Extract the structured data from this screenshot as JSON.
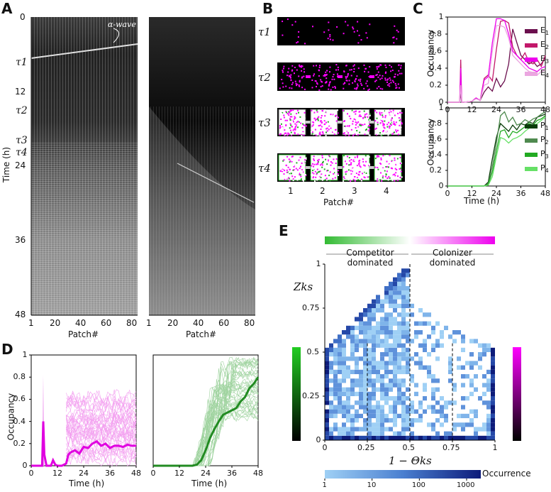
{
  "panels": {
    "A": "A",
    "B": "B",
    "C": "C",
    "D": "D",
    "E": "E"
  },
  "chart_data": [
    {
      "id": "A",
      "type": "heatmap",
      "title": "",
      "xlabel": "Patch#",
      "ylabel": "Time (h)",
      "xticks": [
        "1",
        "20",
        "40",
        "60",
        "80"
      ],
      "yticks": [
        "0",
        "12",
        "24",
        "36",
        "48"
      ],
      "xlim": [
        1,
        84
      ],
      "ylim": [
        0,
        48
      ],
      "annotation": "α-wave",
      "tau_labels": [
        "τ1",
        "τ2",
        "τ3",
        "τ4"
      ],
      "tau_times_h": [
        7,
        15,
        21,
        23
      ]
    },
    {
      "id": "B",
      "type": "heatmap",
      "xlabel": "Patch#",
      "xticks": [
        "1",
        "2",
        "3",
        "4"
      ],
      "rows": [
        "τ1",
        "τ2",
        "τ3",
        "τ4"
      ]
    },
    {
      "id": "C_top",
      "type": "line",
      "xlabel": "",
      "ylabel": "Occupancy",
      "xlim": [
        0,
        48
      ],
      "ylim": [
        0,
        1
      ],
      "xticks": [
        "0",
        "12",
        "24",
        "36",
        "48"
      ],
      "yticks": [
        "0",
        "0.2",
        "0.4",
        "0.6",
        "0.8",
        "1"
      ],
      "series": [
        {
          "name": "E1",
          "color": "#6b0f4e",
          "x": [
            0,
            6,
            6.5,
            7,
            8,
            12,
            14,
            16,
            18,
            20,
            22,
            24,
            26,
            28,
            30,
            32,
            34,
            36,
            38,
            40,
            42,
            44,
            46,
            48
          ],
          "values": [
            0,
            0,
            0.1,
            0,
            0,
            0.01,
            0.05,
            0.02,
            0.12,
            0.18,
            0.13,
            0.28,
            0.18,
            0.25,
            0.45,
            0.86,
            0.7,
            0.55,
            0.5,
            0.45,
            0.48,
            0.42,
            0.45,
            0.52
          ]
        },
        {
          "name": "E2",
          "color": "#c2186a",
          "x": [
            0,
            6,
            6.5,
            7,
            8,
            12,
            14,
            16,
            18,
            20,
            22,
            24,
            26,
            28,
            30,
            32,
            34,
            36,
            38,
            40,
            42,
            44,
            46,
            48
          ],
          "values": [
            0,
            0,
            0.5,
            0,
            0,
            0.01,
            0.05,
            0.02,
            0.28,
            0.32,
            0.25,
            0.62,
            0.95,
            0.96,
            0.93,
            0.65,
            0.55,
            0.5,
            0.58,
            0.47,
            0.45,
            0.5,
            0.42,
            0.55
          ]
        },
        {
          "name": "E3",
          "color": "#ee00ee",
          "x": [
            0,
            6,
            6.5,
            7,
            8,
            12,
            14,
            16,
            18,
            20,
            22,
            24,
            26,
            28,
            30,
            32,
            34,
            36,
            38,
            40,
            42,
            44,
            46,
            48
          ],
          "values": [
            0,
            0,
            0.4,
            0,
            0,
            0.01,
            0.05,
            0.02,
            0.26,
            0.3,
            0.7,
            0.98,
            0.98,
            0.96,
            0.8,
            0.6,
            0.55,
            0.5,
            0.45,
            0.4,
            0.38,
            0.36,
            0.4,
            0.42
          ]
        },
        {
          "name": "E4",
          "color": "#eba6e0",
          "x": [
            0,
            6,
            6.5,
            7,
            8,
            12,
            14,
            16,
            18,
            20,
            22,
            24,
            26,
            28,
            30,
            32,
            34,
            36,
            38,
            40,
            42,
            44,
            46,
            48
          ],
          "values": [
            0,
            0,
            0.2,
            0,
            0,
            0.01,
            0.04,
            0.02,
            0.2,
            0.22,
            0.6,
            0.9,
            0.9,
            0.88,
            0.75,
            0.55,
            0.5,
            0.45,
            0.4,
            0.36,
            0.35,
            0.32,
            0.36,
            0.38
          ]
        }
      ]
    },
    {
      "id": "C_bottom",
      "type": "line",
      "xlabel": "Time (h)",
      "ylabel": "Occupancy",
      "xlim": [
        0,
        48
      ],
      "ylim": [
        0,
        1
      ],
      "xticks": [
        "0",
        "12",
        "24",
        "36",
        "48"
      ],
      "yticks": [
        "0",
        "0.2",
        "0.4",
        "0.6",
        "0.8",
        "1"
      ],
      "series": [
        {
          "name": "P1",
          "color": "#0a3d0a",
          "x": [
            0,
            18,
            20,
            22,
            24,
            26,
            28,
            30,
            32,
            34,
            36,
            38,
            40,
            42,
            44,
            46,
            48
          ],
          "values": [
            0,
            0,
            0.05,
            0.35,
            0.62,
            0.8,
            0.75,
            0.7,
            0.78,
            0.72,
            0.8,
            0.78,
            0.82,
            0.8,
            0.88,
            0.9,
            0.92
          ]
        },
        {
          "name": "P2",
          "color": "#4f8a4f",
          "x": [
            0,
            18,
            20,
            22,
            24,
            26,
            28,
            30,
            32,
            34,
            36,
            38,
            40,
            42,
            44,
            46,
            48
          ],
          "values": [
            0,
            0,
            0.03,
            0.25,
            0.55,
            0.9,
            0.95,
            0.82,
            0.88,
            0.78,
            0.8,
            0.85,
            0.82,
            0.86,
            0.88,
            0.92,
            0.95
          ]
        },
        {
          "name": "P3",
          "color": "#22aa22",
          "x": [
            0,
            18,
            20,
            22,
            24,
            26,
            28,
            30,
            32,
            34,
            36,
            38,
            40,
            42,
            44,
            46,
            48
          ],
          "values": [
            0,
            0,
            0.02,
            0.18,
            0.45,
            0.7,
            0.72,
            0.62,
            0.7,
            0.68,
            0.72,
            0.76,
            0.8,
            0.78,
            0.84,
            0.86,
            0.9
          ]
        },
        {
          "name": "P4",
          "color": "#66e066",
          "x": [
            0,
            18,
            20,
            22,
            24,
            26,
            28,
            30,
            32,
            34,
            36,
            38,
            40,
            42,
            44,
            46,
            48
          ],
          "values": [
            0,
            0,
            0.01,
            0.12,
            0.38,
            0.62,
            0.6,
            0.55,
            0.6,
            0.62,
            0.65,
            0.7,
            0.74,
            0.76,
            0.8,
            0.84,
            0.88
          ]
        }
      ]
    },
    {
      "id": "D_left",
      "type": "line",
      "xlabel": "Time (h)",
      "ylabel": "Occupancy",
      "xlim": [
        0,
        48
      ],
      "ylim": [
        0,
        1
      ],
      "xticks": [
        "0",
        "12",
        "24",
        "36",
        "48"
      ],
      "yticks": [
        "0",
        "0.2",
        "0.4",
        "0.6",
        "0.8",
        "1"
      ],
      "series": [
        {
          "name": "mean",
          "color": "#e000e0",
          "x": [
            0,
            5,
            5.5,
            6,
            7,
            9,
            10,
            11,
            12,
            14,
            16,
            17,
            18,
            20,
            22,
            24,
            26,
            28,
            30,
            32,
            34,
            36,
            38,
            40,
            42,
            44,
            46,
            48
          ],
          "values": [
            0,
            0,
            0.4,
            0.1,
            0,
            0,
            0.05,
            0.01,
            0,
            0,
            0.02,
            0.1,
            0.12,
            0.14,
            0.11,
            0.17,
            0.16,
            0.2,
            0.22,
            0.18,
            0.2,
            0.16,
            0.18,
            0.18,
            0.17,
            0.19,
            0.18,
            0.18
          ]
        }
      ]
    },
    {
      "id": "D_right",
      "type": "line",
      "xlabel": "Time (h)",
      "xlim": [
        0,
        48
      ],
      "ylim": [
        0,
        1
      ],
      "xticks": [
        "0",
        "12",
        "24",
        "36",
        "48"
      ],
      "series": [
        {
          "name": "mean",
          "color": "#228b22",
          "x": [
            0,
            18,
            20,
            22,
            24,
            26,
            28,
            30,
            32,
            34,
            36,
            38,
            40,
            42,
            44,
            46,
            48
          ],
          "values": [
            0,
            0,
            0.01,
            0.05,
            0.14,
            0.25,
            0.33,
            0.4,
            0.46,
            0.48,
            0.5,
            0.52,
            0.58,
            0.62,
            0.7,
            0.74,
            0.8
          ]
        }
      ]
    },
    {
      "id": "E",
      "type": "heatmap",
      "xlabel": "1 − Θks",
      "ylabel": "Zks",
      "xticks": [
        "0",
        "0.25",
        "0.5",
        "0.75",
        "1"
      ],
      "yticks": [
        "0",
        "0.25",
        "0.5",
        "0.75",
        "1"
      ],
      "xlim": [
        0,
        1
      ],
      "ylim": [
        0,
        1
      ],
      "regions": [
        "Competitor dominated",
        "Colonizer dominated"
      ],
      "colorbar_label": "Occurrence",
      "colorbar_ticks": [
        "1",
        "10",
        "100",
        "1000"
      ],
      "colorbar_scale": "log",
      "dashed_lines_x": [
        0.25,
        0.5,
        0.75
      ]
    }
  ],
  "legends": {
    "C_top": [
      {
        "base": "E",
        "sub": "1"
      },
      {
        "base": "E",
        "sub": "2"
      },
      {
        "base": "E",
        "sub": "3"
      },
      {
        "base": "E",
        "sub": "4"
      }
    ],
    "C_bottom": [
      {
        "base": "P",
        "sub": "1"
      },
      {
        "base": "P",
        "sub": "2"
      },
      {
        "base": "P",
        "sub": "3"
      },
      {
        "base": "P",
        "sub": "4"
      }
    ]
  },
  "colors": {
    "magenta": "#ee00ee",
    "green": "#22aa22",
    "blue_dark": "#0d1b7a",
    "blue_light": "#8ec5f2"
  }
}
